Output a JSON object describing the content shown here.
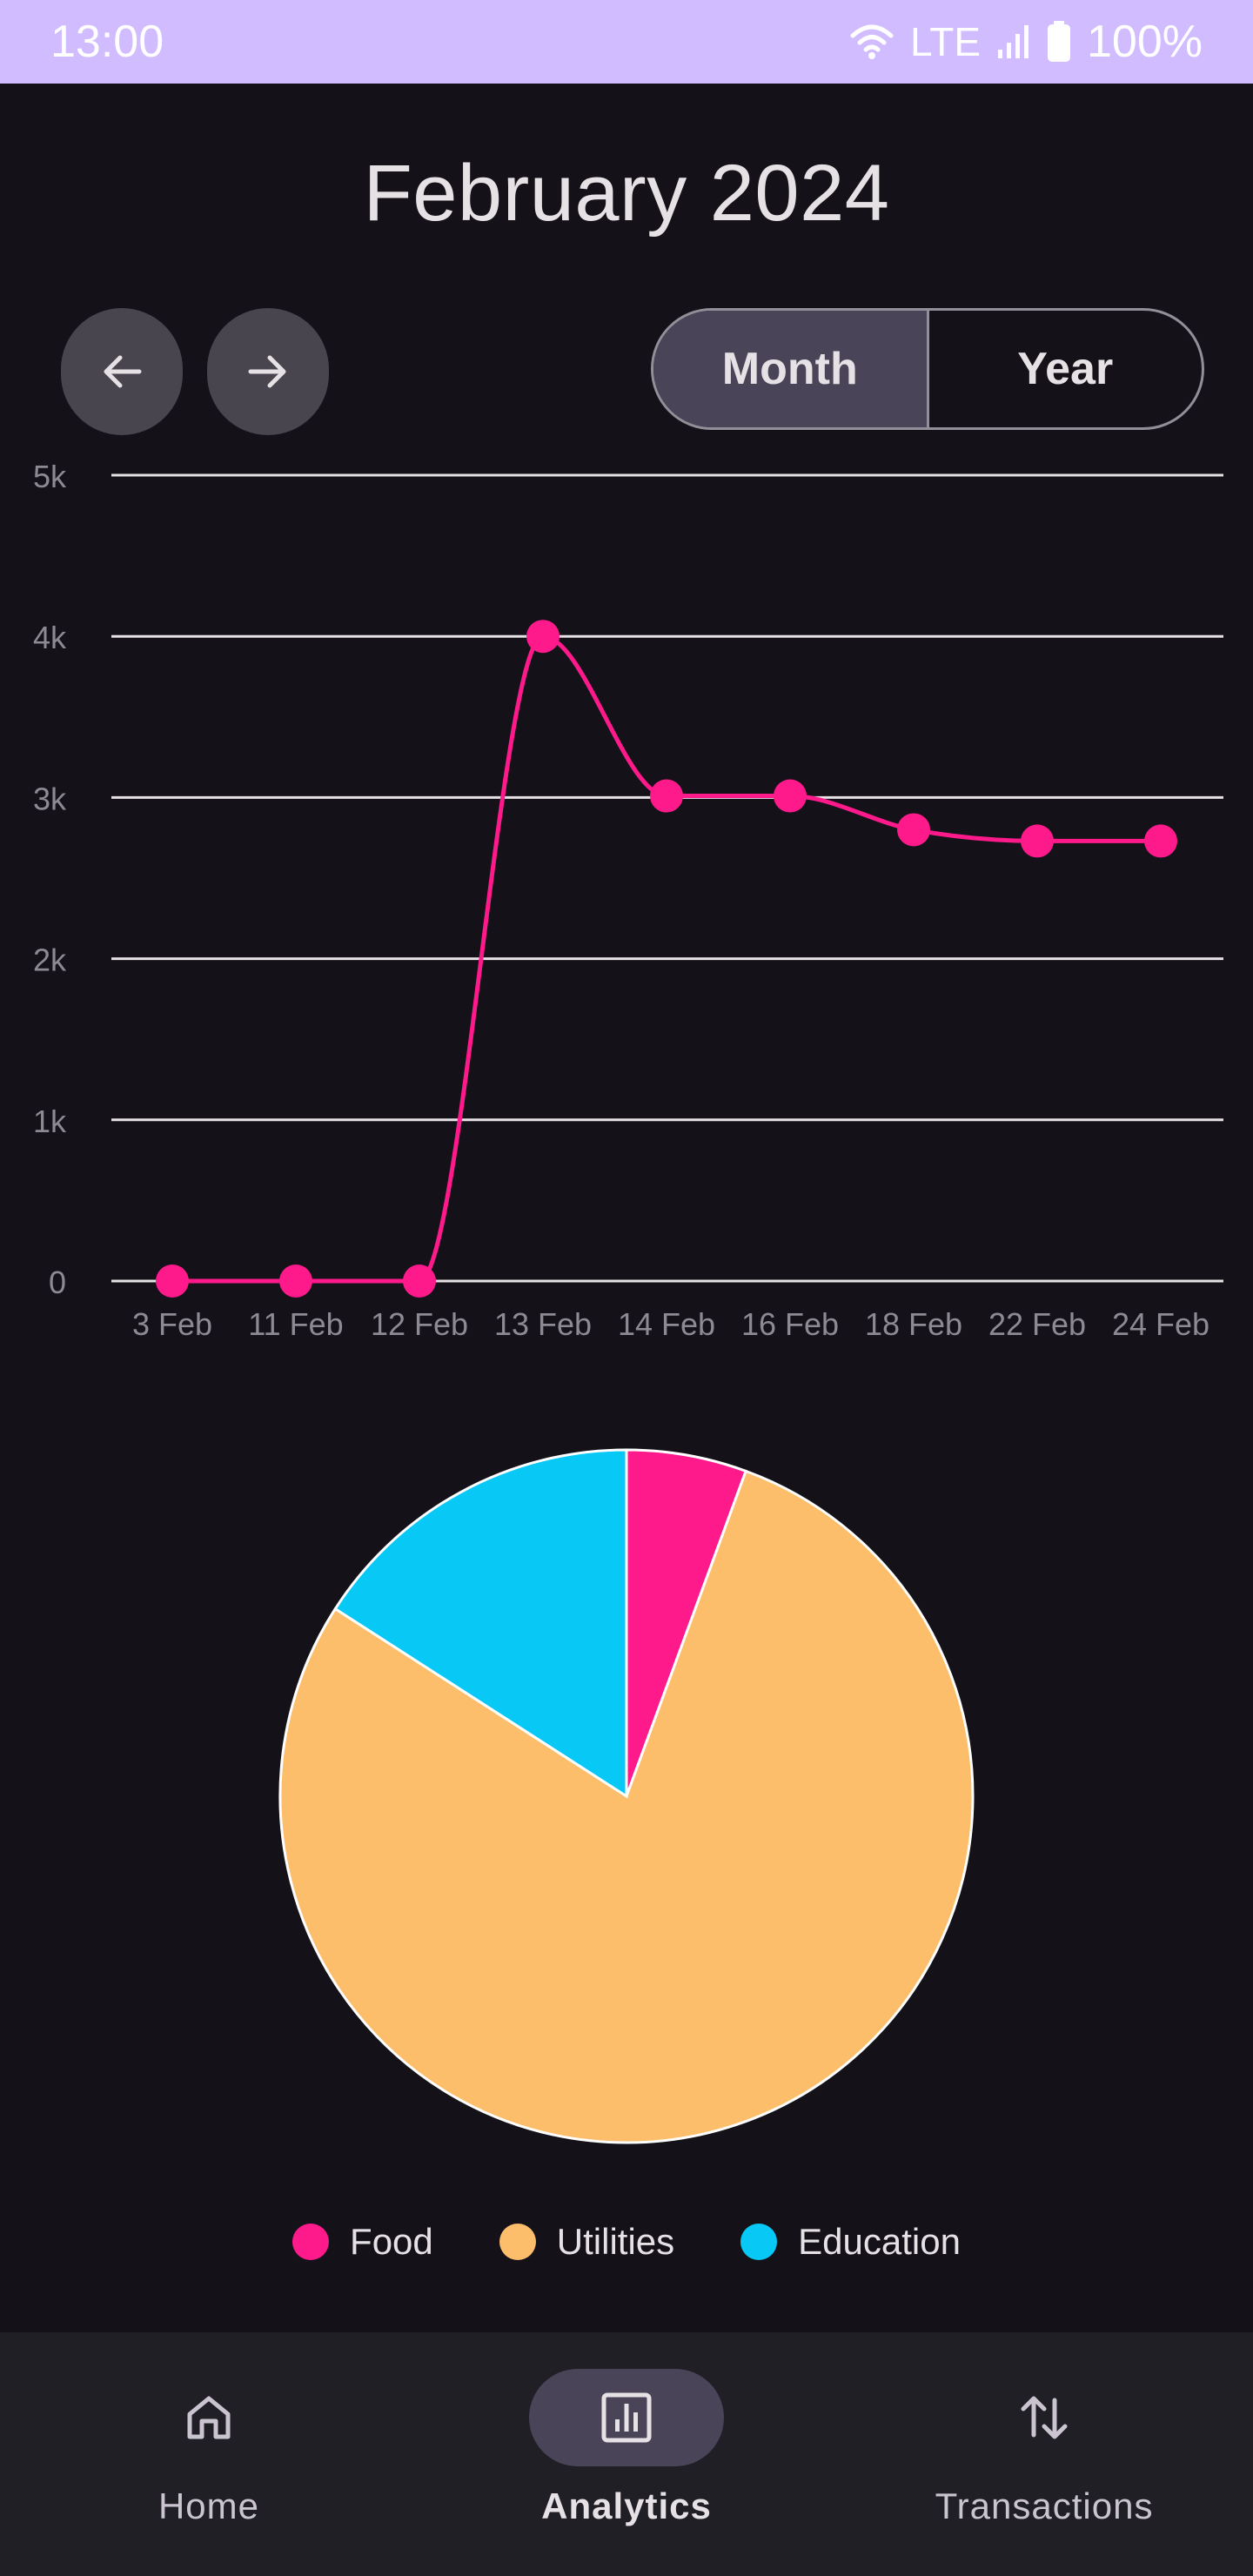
{
  "status_bar": {
    "time": "13:00",
    "network": "LTE",
    "battery": "100%"
  },
  "header": {
    "title": "February 2024"
  },
  "nav_buttons": {
    "prev_icon": "arrow-left-icon",
    "next_icon": "arrow-right-icon"
  },
  "period_toggle": {
    "options": [
      "Month",
      "Year"
    ],
    "selected": "Month"
  },
  "colors": {
    "accent": "#ff1a8c",
    "food": "#ff1a8c",
    "utilities": "#fdbe6b",
    "education": "#08c8f5",
    "background": "#141218"
  },
  "chart_data": [
    {
      "type": "line",
      "categories": [
        "3 Feb",
        "11 Feb",
        "12 Feb",
        "13 Feb",
        "14 Feb",
        "16 Feb",
        "18 Feb",
        "22 Feb",
        "24 Feb"
      ],
      "series": [
        {
          "values": [
            0,
            0,
            0,
            4000,
            3010,
            3010,
            2800,
            2730,
            2730
          ]
        }
      ],
      "yticks": [
        "0",
        "1k",
        "2k",
        "3k",
        "4k",
        "5k"
      ],
      "ylim": [
        0,
        5000
      ],
      "grid": true
    },
    {
      "type": "pie",
      "labels": [
        "Food",
        "Utilities",
        "Education"
      ],
      "values": [
        5.6,
        78.5,
        15.9
      ],
      "legend": "bottom"
    }
  ],
  "bottom_nav": {
    "items": [
      {
        "label": "Home",
        "icon": "home-icon"
      },
      {
        "label": "Analytics",
        "icon": "analytics-icon"
      },
      {
        "label": "Transactions",
        "icon": "transactions-icon"
      }
    ],
    "selected": "Analytics"
  }
}
